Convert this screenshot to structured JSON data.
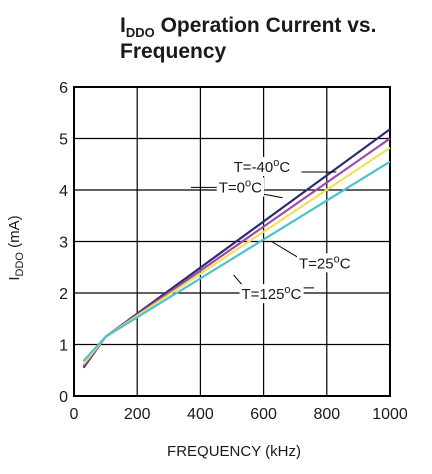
{
  "chart_data": {
    "type": "line",
    "title": {
      "prefix": "I",
      "prefix_sub": "DDO",
      "line1_rest": " Operation Current vs.",
      "line2": "Frequency"
    },
    "xlabel": "FREQUENCY (kHz)",
    "ylabel": {
      "main": "I",
      "sub": "DDO",
      "unit": " (mA)"
    },
    "xlim": [
      0,
      1000
    ],
    "ylim": [
      0,
      6
    ],
    "xticks": [
      0,
      200,
      400,
      600,
      800,
      1000
    ],
    "yticks": [
      0,
      1,
      2,
      3,
      4,
      5,
      6
    ],
    "grid": true,
    "series": [
      {
        "name": "T=-40°C",
        "color": "#2b2d6e",
        "x": [
          30,
          100,
          1000
        ],
        "y": [
          0.55,
          1.15,
          5.18
        ]
      },
      {
        "name": "T=0°C",
        "color": "#a04aa8",
        "x": [
          30,
          100,
          1000
        ],
        "y": [
          0.58,
          1.15,
          5.0
        ]
      },
      {
        "name": "T=25°C",
        "color": "#f0e05a",
        "x": [
          30,
          100,
          1000
        ],
        "y": [
          0.62,
          1.15,
          4.82
        ]
      },
      {
        "name": "T=125°C",
        "color": "#4ec3cc",
        "x": [
          30,
          100,
          1000
        ],
        "y": [
          0.68,
          1.15,
          4.55
        ]
      }
    ],
    "annotations": [
      {
        "label": "T=-40",
        "sup": "o",
        "unit": "C",
        "text_at": [
          505,
          4.35
        ],
        "anchor": "start",
        "point_at": [
          830,
          4.35
        ],
        "leader": [
          [
            720,
            4.35
          ],
          [
            830,
            4.35
          ]
        ]
      },
      {
        "label": "T=0",
        "sup": "o",
        "unit": "C",
        "text_at": [
          458,
          3.95
        ],
        "anchor": "start",
        "point_at": [
          660,
          3.95
        ],
        "leader": [
          [
            370,
            4.05
          ],
          [
            458,
            4.05
          ],
          [
            617,
            3.9
          ],
          [
            660,
            3.85
          ]
        ]
      },
      {
        "label": "T=25",
        "sup": "o",
        "unit": "C",
        "text_at": [
          712,
          2.48
        ],
        "anchor": "start",
        "point_at": [
          625,
          3.0
        ],
        "leader": [
          [
            625,
            3.0
          ],
          [
            712,
            2.68
          ]
        ]
      },
      {
        "label": "T=125",
        "sup": "o",
        "unit": "C",
        "text_at": [
          530,
          1.88
        ],
        "anchor": "start",
        "point_at": [
          505,
          2.35
        ],
        "leader": [
          [
            505,
            2.35
          ],
          [
            540,
            2.1
          ],
          [
            760,
            2.1
          ]
        ]
      }
    ]
  }
}
